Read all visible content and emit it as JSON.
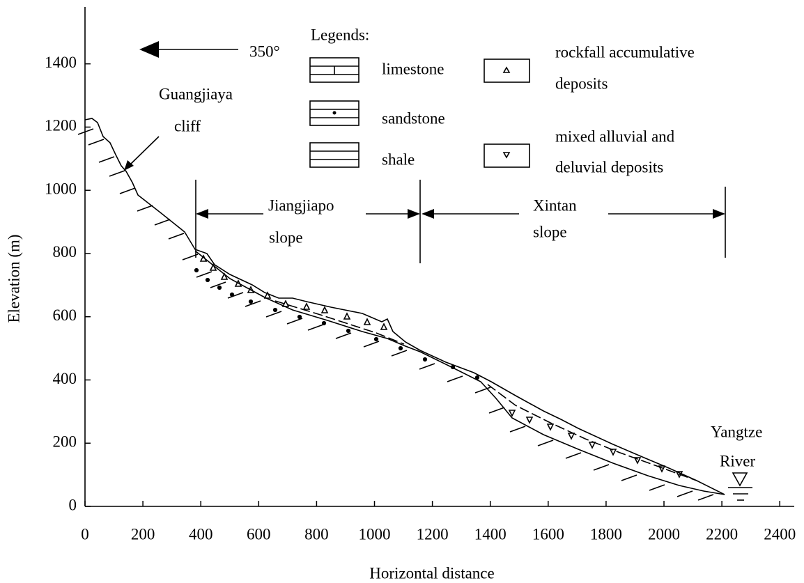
{
  "xaxis": {
    "label": "Horizontal distance",
    "lim": [
      0,
      2450
    ],
    "ticks": [
      0,
      200,
      400,
      600,
      800,
      1000,
      1200,
      1400,
      1600,
      1800,
      2000,
      2200,
      2400
    ]
  },
  "yaxis": {
    "label": "Elevation (m)",
    "lim": [
      0,
      1580
    ],
    "ticks": [
      0,
      200,
      400,
      600,
      800,
      1000,
      1200,
      1400
    ]
  },
  "direction": "350°",
  "cliff_label": [
    "Guangjiaya",
    "cliff"
  ],
  "legend": {
    "title": "Legends:",
    "items": [
      [
        "limestone"
      ],
      [
        "sandstone"
      ],
      [
        "shale"
      ],
      [
        "rockfall accumulative",
        "deposits"
      ],
      [
        "mixed alluvial and",
        "deluvial deposits"
      ]
    ]
  },
  "zones": [
    [
      "Jiangjiapo",
      "slope"
    ],
    [
      "Xintan",
      "slope"
    ]
  ],
  "river_label": [
    "Yangtze",
    "River"
  ]
}
